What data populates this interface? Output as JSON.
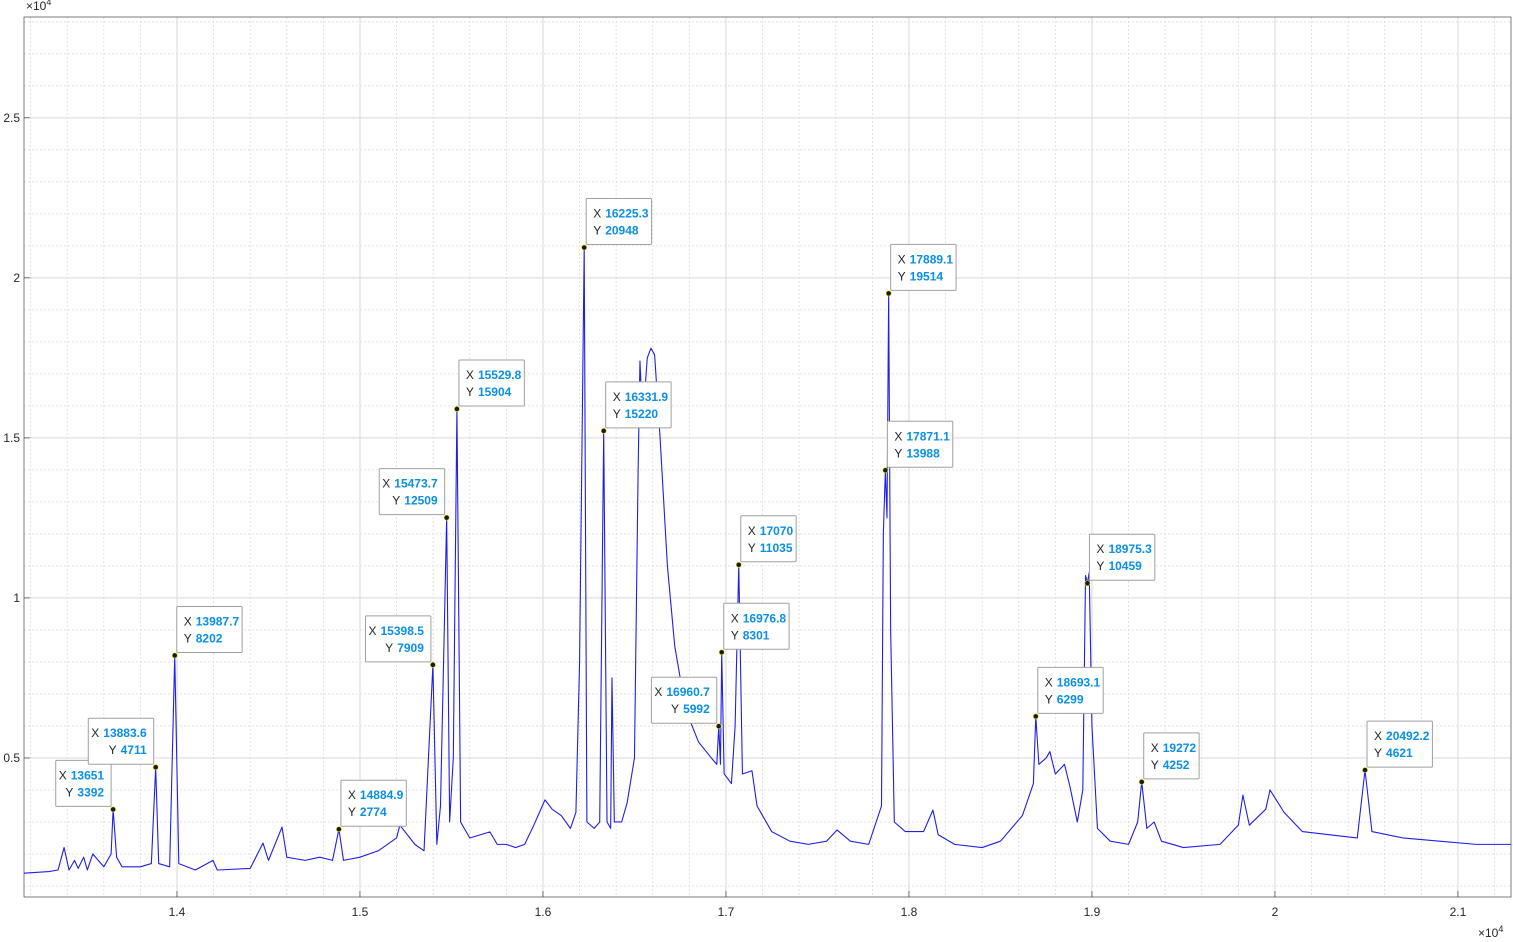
{
  "chart_data": {
    "type": "line",
    "color": "#1f1fe6",
    "tip_value_color": "#0a8fe6",
    "grid": true,
    "xlim": [
      13164,
      21290
    ],
    "ylim": [
      656,
      28150
    ],
    "xticks": [
      {
        "value": 14000,
        "label": "1.4"
      },
      {
        "value": 15000,
        "label": "1.5"
      },
      {
        "value": 16000,
        "label": "1.6"
      },
      {
        "value": 17000,
        "label": "1.7"
      },
      {
        "value": 18000,
        "label": "1.8"
      },
      {
        "value": 19000,
        "label": "1.9"
      },
      {
        "value": 20000,
        "label": "2"
      },
      {
        "value": 21000,
        "label": "2.1"
      }
    ],
    "yticks": [
      {
        "value": 5000,
        "label": "0.5"
      },
      {
        "value": 10000,
        "label": "1"
      },
      {
        "value": 15000,
        "label": "1.5"
      },
      {
        "value": 20000,
        "label": "2"
      },
      {
        "value": 25000,
        "label": "2.5"
      }
    ],
    "xminorticks": [
      13200,
      13400,
      13600,
      13800,
      14200,
      14400,
      14600,
      14800,
      15200,
      15400,
      15600,
      15800,
      16200,
      16400,
      16600,
      16800,
      17200,
      17400,
      17600,
      17800,
      18200,
      18400,
      18600,
      18800,
      19200,
      19400,
      19600,
      19800,
      20200,
      20400,
      20600,
      20800,
      21200
    ],
    "yminorticks": [
      1000,
      2000,
      3000,
      4000,
      6000,
      7000,
      8000,
      9000,
      11000,
      12000,
      13000,
      14000,
      16000,
      17000,
      18000,
      19000,
      21000,
      22000,
      23000,
      24000,
      26000,
      27000,
      28000
    ],
    "x_exponent": {
      "base": "×10",
      "power": "4"
    },
    "y_exponent": {
      "base": "×10",
      "power": "4"
    },
    "tip_labels": [
      "X",
      "Y"
    ],
    "x": [
      13164,
      13300,
      13350,
      13383,
      13410,
      13440,
      13460,
      13490,
      13510,
      13540,
      13600,
      13640,
      13651,
      13670,
      13700,
      13800,
      13860,
      13883.6,
      13900,
      13960,
      13987.7,
      14010,
      14100,
      14197,
      14220,
      14400,
      14470,
      14500,
      14574,
      14600,
      14700,
      14780,
      14850,
      14884.9,
      14910,
      15000,
      15100,
      15200,
      15218,
      15300,
      15350,
      15398.5,
      15420,
      15440,
      15473.7,
      15490,
      15510,
      15529.8,
      15550,
      15600,
      15710,
      15750,
      15800,
      15850,
      15900,
      15950,
      16011,
      16050,
      16100,
      16150,
      16180,
      16200,
      16225.3,
      16240,
      16280,
      16310,
      16331.9,
      16350,
      16370,
      16377,
      16390,
      16430,
      16460,
      16500,
      16520,
      16530,
      16545,
      16570,
      16590,
      16610,
      16640,
      16680,
      16720,
      16780,
      16850,
      16920,
      16950,
      16960.7,
      16970,
      16976.8,
      16990,
      17030,
      17050,
      17070,
      17090,
      17142,
      17170,
      17250,
      17350,
      17450,
      17550,
      17607,
      17680,
      17780,
      17850,
      17860,
      17871.1,
      17880,
      17889.1,
      17900,
      17920,
      17980,
      18080,
      18131,
      18160,
      18250,
      18400,
      18500,
      18620,
      18680,
      18693.1,
      18710,
      18750,
      18770,
      18800,
      18850,
      18880,
      18920,
      18950,
      18965,
      18975.3,
      18985,
      19000,
      19030,
      19100,
      19200,
      19250,
      19272,
      19300,
      19340,
      19380,
      19500,
      19700,
      19800,
      19825,
      19860,
      19950,
      19973,
      20050,
      20150,
      20300,
      20450,
      20492.2,
      20530,
      20700,
      20900,
      21100,
      21290
    ],
    "values": [
      1400,
      1450,
      1500,
      2200,
      1500,
      1800,
      1550,
      1900,
      1500,
      2000,
      1600,
      2000,
      3392,
      1900,
      1600,
      1600,
      1700,
      4711,
      1700,
      1600,
      8202,
      1700,
      1500,
      1800,
      1500,
      1550,
      2340,
      1800,
      2840,
      1900,
      1800,
      1900,
      1800,
      2774,
      1800,
      1900,
      2100,
      2500,
      2900,
      2300,
      2100,
      7909,
      2300,
      3500,
      12509,
      3000,
      5000,
      15904,
      3000,
      2500,
      2690,
      2300,
      2300,
      2200,
      2300,
      2900,
      3690,
      3400,
      3200,
      2800,
      3300,
      8000,
      20948,
      3000,
      2800,
      3000,
      15220,
      3000,
      2800,
      7500,
      3000,
      3000,
      3600,
      5000,
      14000,
      17400,
      15500,
      17500,
      17800,
      17600,
      15000,
      11000,
      8500,
      6500,
      5500,
      5000,
      4800,
      5992,
      4800,
      8301,
      4500,
      4200,
      6000,
      11035,
      4500,
      4600,
      3500,
      2700,
      2400,
      2300,
      2400,
      2750,
      2400,
      2300,
      3500,
      12000,
      13988,
      12500,
      19514,
      9000,
      3000,
      2700,
      2700,
      3370,
      2600,
      2300,
      2200,
      2400,
      3200,
      4200,
      6299,
      4800,
      5000,
      5200,
      4500,
      4800,
      4100,
      3000,
      4000,
      10700,
      10459,
      10800,
      6000,
      2800,
      2400,
      2300,
      3000,
      4252,
      2800,
      3000,
      2400,
      2200,
      2300,
      2900,
      3840,
      2900,
      3400,
      4000,
      3300,
      2700,
      2600,
      2500,
      4621,
      2700,
      2500,
      2400,
      2300,
      2300
    ],
    "data_tips": [
      {
        "x": 13651,
        "y": 3392
      },
      {
        "x": 13883.6,
        "y": 4711
      },
      {
        "x": 13987.7,
        "y": 8202
      },
      {
        "x": 14884.9,
        "y": 2774
      },
      {
        "x": 15398.5,
        "y": 7909
      },
      {
        "x": 15473.7,
        "y": 12509
      },
      {
        "x": 15529.8,
        "y": 15904
      },
      {
        "x": 16225.3,
        "y": 20948
      },
      {
        "x": 16331.9,
        "y": 15220
      },
      {
        "x": 16960.7,
        "y": 5992
      },
      {
        "x": 16976.8,
        "y": 8301
      },
      {
        "x": 17070,
        "y": 11035
      },
      {
        "x": 17871.1,
        "y": 13988
      },
      {
        "x": 17889.1,
        "y": 19514
      },
      {
        "x": 18693.1,
        "y": 6299
      },
      {
        "x": 18975.3,
        "y": 10459
      },
      {
        "x": 19272,
        "y": 4252
      },
      {
        "x": 20492.2,
        "y": 4621
      }
    ]
  }
}
